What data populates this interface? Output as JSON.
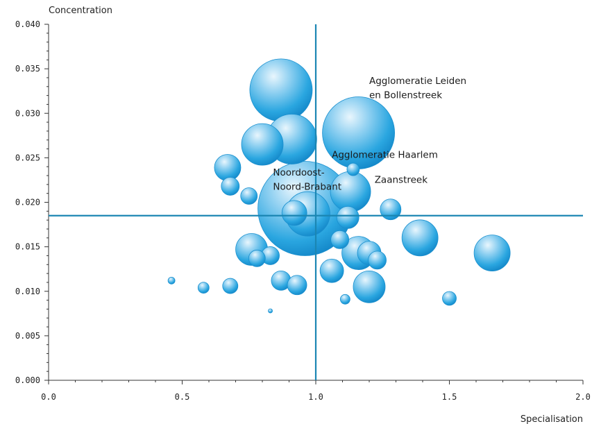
{
  "chart_data": {
    "type": "scatter",
    "title": "",
    "xlabel": "Specialisation",
    "ylabel": "Concentration",
    "xlim": [
      0,
      2.0
    ],
    "ylim": [
      0,
      0.04
    ],
    "x_ticks": [
      "0.0",
      "0.5",
      "1.0",
      "1.5",
      "2.0"
    ],
    "y_ticks": [
      "0.000",
      "0.005",
      "0.010",
      "0.015",
      "0.020",
      "0.025",
      "0.030",
      "0.035",
      "0.040"
    ],
    "x_ticks_values": [
      0,
      0.5,
      1.0,
      1.5,
      2.0
    ],
    "y_ticks_values": [
      0,
      0.005,
      0.01,
      0.015,
      0.02,
      0.025,
      0.03,
      0.035,
      0.04
    ],
    "reference_lines": {
      "x": 1.0,
      "y": 0.0185
    },
    "bubble_color": "#1a9ad6",
    "line_color": "#1b86b3",
    "points": [
      {
        "x": 0.96,
        "y": 0.0193,
        "size": 68
      },
      {
        "x": 1.16,
        "y": 0.0278,
        "size": 52
      },
      {
        "x": 0.87,
        "y": 0.0326,
        "size": 45
      },
      {
        "x": 0.8,
        "y": 0.0265,
        "size": 30
      },
      {
        "x": 0.91,
        "y": 0.0271,
        "size": 36
      },
      {
        "x": 0.97,
        "y": 0.0187,
        "size": 32
      },
      {
        "x": 1.13,
        "y": 0.0212,
        "size": 29
      },
      {
        "x": 0.92,
        "y": 0.0188,
        "size": 18
      },
      {
        "x": 1.12,
        "y": 0.0183,
        "size": 16
      },
      {
        "x": 1.09,
        "y": 0.0158,
        "size": 13
      },
      {
        "x": 0.67,
        "y": 0.0239,
        "size": 19
      },
      {
        "x": 0.68,
        "y": 0.0218,
        "size": 13
      },
      {
        "x": 0.75,
        "y": 0.0207,
        "size": 12
      },
      {
        "x": 0.76,
        "y": 0.0147,
        "size": 23
      },
      {
        "x": 0.78,
        "y": 0.0137,
        "size": 12
      },
      {
        "x": 0.83,
        "y": 0.014,
        "size": 13
      },
      {
        "x": 0.87,
        "y": 0.0112,
        "size": 14
      },
      {
        "x": 0.93,
        "y": 0.0107,
        "size": 14
      },
      {
        "x": 1.06,
        "y": 0.0123,
        "size": 17
      },
      {
        "x": 1.16,
        "y": 0.0143,
        "size": 24
      },
      {
        "x": 1.2,
        "y": 0.0143,
        "size": 17
      },
      {
        "x": 1.23,
        "y": 0.0135,
        "size": 13
      },
      {
        "x": 1.2,
        "y": 0.0105,
        "size": 23
      },
      {
        "x": 1.28,
        "y": 0.0192,
        "size": 15
      },
      {
        "x": 1.39,
        "y": 0.016,
        "size": 26
      },
      {
        "x": 1.66,
        "y": 0.0143,
        "size": 26
      },
      {
        "x": 1.5,
        "y": 0.0092,
        "size": 10
      },
      {
        "x": 1.11,
        "y": 0.0091,
        "size": 7
      },
      {
        "x": 1.14,
        "y": 0.0237,
        "size": 9
      },
      {
        "x": 0.68,
        "y": 0.0106,
        "size": 11
      },
      {
        "x": 0.58,
        "y": 0.0104,
        "size": 8
      },
      {
        "x": 0.46,
        "y": 0.0112,
        "size": 5
      },
      {
        "x": 0.83,
        "y": 0.0078,
        "size": 3
      }
    ],
    "annotations": [
      {
        "text": "Agglomeratie Leiden",
        "x": 1.2,
        "y": 0.0336
      },
      {
        "text": "en Bollenstreek",
        "x": 1.2,
        "y": 0.032
      },
      {
        "text": "Agglomeratie Haarlem",
        "x": 1.06,
        "y": 0.0253
      },
      {
        "text": "Noordoost-",
        "x": 0.84,
        "y": 0.0233
      },
      {
        "text": "Noord-Brabant",
        "x": 0.84,
        "y": 0.0217
      },
      {
        "text": "Zaanstreek",
        "x": 1.22,
        "y": 0.0225
      }
    ]
  }
}
